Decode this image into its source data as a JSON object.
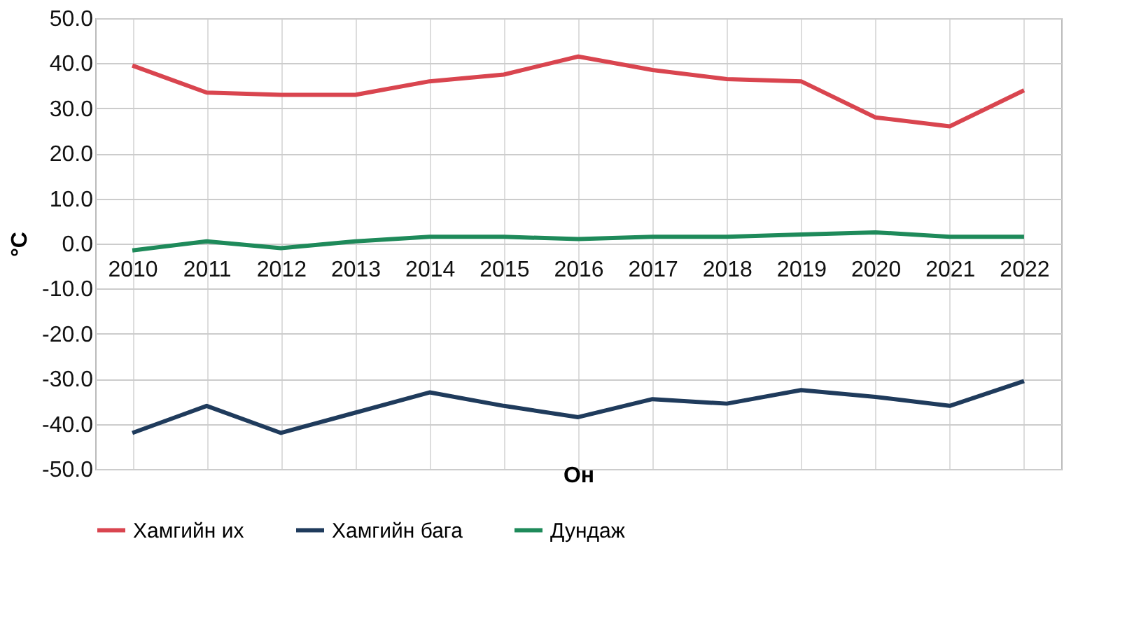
{
  "chart_data": {
    "type": "line",
    "xlabel": "Он",
    "ylabel": "°C",
    "categories": [
      "2010",
      "2011",
      "2012",
      "2013",
      "2014",
      "2015",
      "2016",
      "2017",
      "2018",
      "2019",
      "2020",
      "2021",
      "2022"
    ],
    "series": [
      {
        "name": "Хамгийн их",
        "color": "#d9454f",
        "values": [
          39.5,
          33.5,
          33,
          33,
          36,
          37.5,
          41.5,
          38.5,
          36.5,
          36,
          28,
          26,
          34
        ]
      },
      {
        "name": "Хамгийн бага",
        "color": "#1f3b5c",
        "values": [
          -42,
          -36,
          -42,
          -37.5,
          -33,
          -36,
          -38.5,
          -34.5,
          -35.5,
          -32.5,
          -34,
          -36,
          -30.5
        ]
      },
      {
        "name": "Дундаж",
        "color": "#1e8a5a",
        "values": [
          -1.5,
          0.5,
          -1,
          0.5,
          1.5,
          1.5,
          1,
          1.5,
          1.5,
          2,
          2.5,
          1.5,
          1.5
        ]
      }
    ],
    "ylim": [
      -50,
      50
    ],
    "yticks": [
      {
        "value": -50,
        "label": "-50.0"
      },
      {
        "value": -40,
        "label": "-40.0"
      },
      {
        "value": -30,
        "label": "-30.0"
      },
      {
        "value": -20,
        "label": "-20.0"
      },
      {
        "value": -10,
        "label": "-10.0"
      },
      {
        "value": 0,
        "label": "0.0"
      },
      {
        "value": 10,
        "label": "10.0"
      },
      {
        "value": 20,
        "label": "20.0"
      },
      {
        "value": 30,
        "label": "30.0"
      },
      {
        "value": 40,
        "label": "40.0"
      },
      {
        "value": 50,
        "label": "50.0"
      }
    ],
    "grid": true,
    "legend": "bottom",
    "marker": "none",
    "line_style": "solid"
  }
}
